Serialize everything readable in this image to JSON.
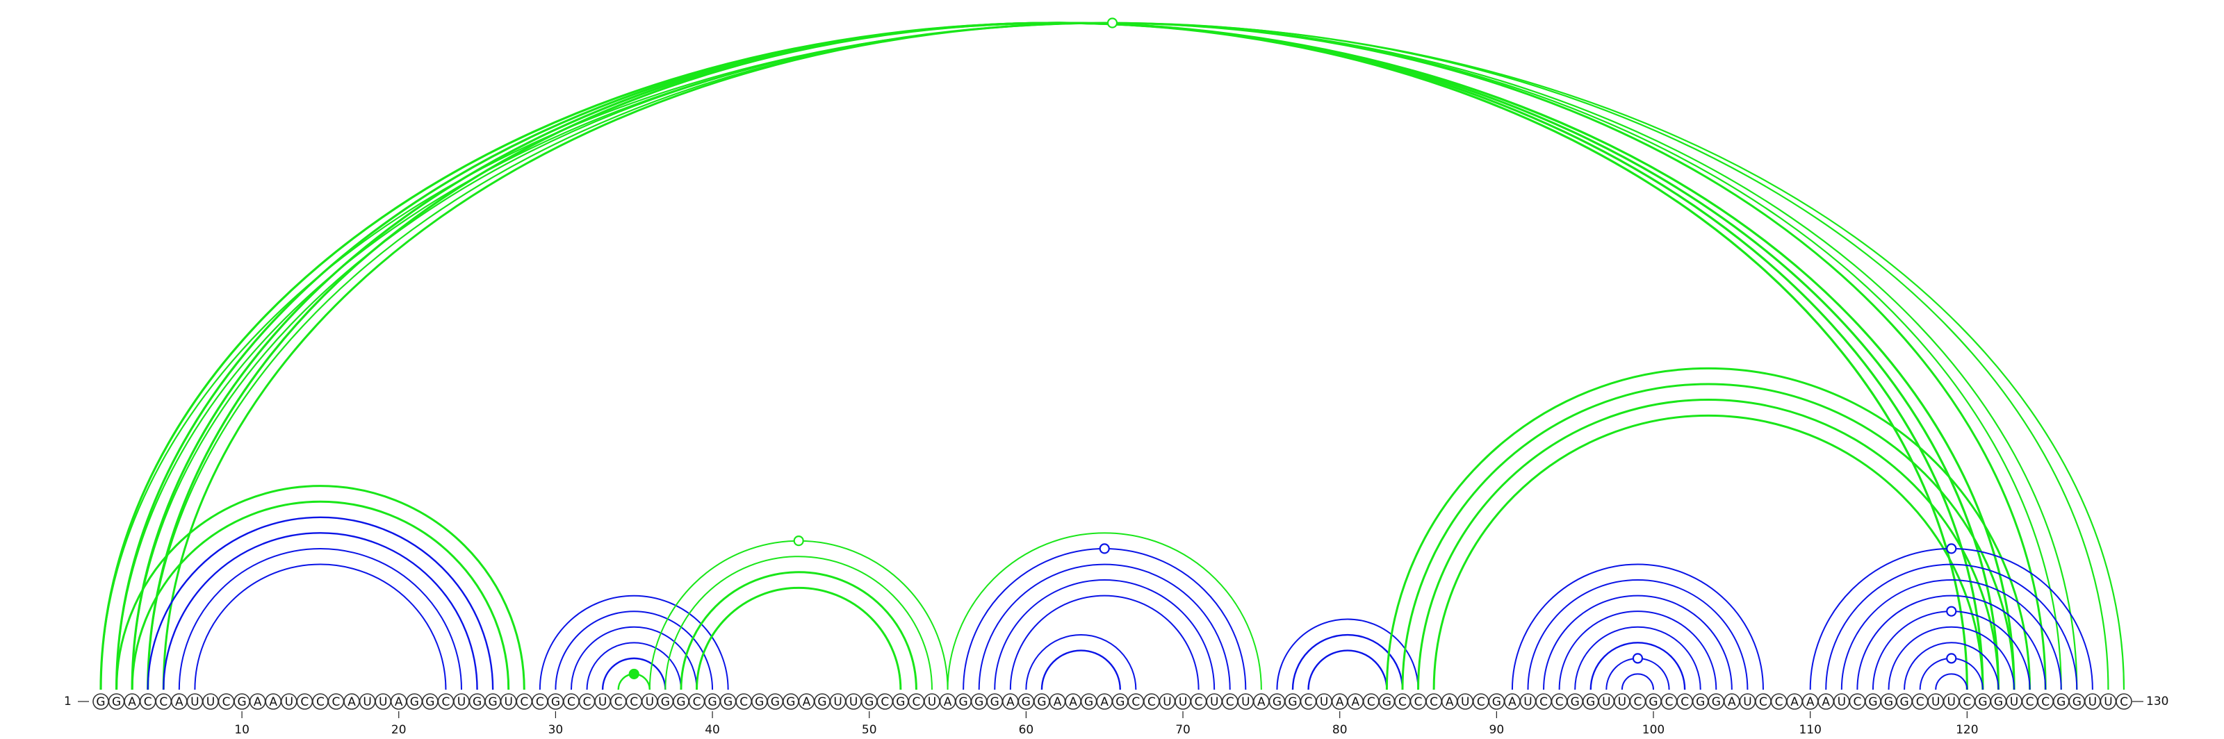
{
  "sequence": "GGACCAUUCGAAUCCCAUUAGGCUGGUCCGCCUCCUGGCGGCGGGAGUUGCGCUAGGGAGGAAGAGCCUUCUCUAGGCUAACGCCCAUCGAUCCGGUUCGCCGGAUCCAAAUCGGGCUUCGGUCCGGUUC",
  "start_label": "1",
  "end_label": "130",
  "tick_labels": [
    "10",
    "20",
    "30",
    "40",
    "50",
    "60",
    "70",
    "80",
    "90",
    "100",
    "110",
    "120"
  ],
  "colors": {
    "blue": "#0a14e6",
    "green": "#19e619"
  },
  "arcs": [
    {
      "i": 1,
      "j": 130,
      "color": "green",
      "width": 2.2
    },
    {
      "i": 2,
      "j": 129,
      "color": "green",
      "width": 2.2
    },
    {
      "i": 1,
      "j": 123,
      "color": "green",
      "width": 3.2
    },
    {
      "i": 2,
      "j": 122,
      "color": "green",
      "width": 3.2
    },
    {
      "i": 3,
      "j": 121,
      "color": "green",
      "width": 3.2
    },
    {
      "i": 4,
      "j": 120,
      "color": "green",
      "width": 3.2
    },
    {
      "i": 3,
      "j": 127,
      "color": "green",
      "width": 2.2
    },
    {
      "i": 4,
      "j": 126,
      "color": "green",
      "width": 2.2
    },
    {
      "i": 5,
      "j": 125,
      "color": "green",
      "width": 3
    },
    {
      "i": 2,
      "j": 28,
      "color": "green",
      "width": 3
    },
    {
      "i": 3,
      "j": 27,
      "color": "green",
      "width": 3
    },
    {
      "i": 4,
      "j": 26,
      "color": "blue",
      "width": 2.4
    },
    {
      "i": 5,
      "j": 25,
      "color": "blue",
      "width": 2.4
    },
    {
      "i": 6,
      "j": 24,
      "color": "blue",
      "width": 2
    },
    {
      "i": 7,
      "j": 23,
      "color": "blue",
      "width": 2
    },
    {
      "i": 29,
      "j": 41,
      "color": "blue",
      "width": 2
    },
    {
      "i": 30,
      "j": 40,
      "color": "blue",
      "width": 2
    },
    {
      "i": 31,
      "j": 39,
      "color": "blue",
      "width": 2
    },
    {
      "i": 32,
      "j": 38,
      "color": "blue",
      "width": 2
    },
    {
      "i": 33,
      "j": 37,
      "color": "blue",
      "width": 2.4
    },
    {
      "i": 34,
      "j": 36,
      "color": "green",
      "width": 2.4
    },
    {
      "i": 36,
      "j": 55,
      "color": "green",
      "width": 2
    },
    {
      "i": 37,
      "j": 54,
      "color": "green",
      "width": 2
    },
    {
      "i": 38,
      "j": 53,
      "color": "green",
      "width": 3
    },
    {
      "i": 39,
      "j": 52,
      "color": "green",
      "width": 3
    },
    {
      "i": 55,
      "j": 75,
      "color": "green",
      "width": 2
    },
    {
      "i": 56,
      "j": 74,
      "color": "blue",
      "width": 2
    },
    {
      "i": 57,
      "j": 73,
      "color": "blue",
      "width": 2
    },
    {
      "i": 58,
      "j": 72,
      "color": "blue",
      "width": 2
    },
    {
      "i": 59,
      "j": 71,
      "color": "blue",
      "width": 2
    },
    {
      "i": 60,
      "j": 67,
      "color": "blue",
      "width": 2
    },
    {
      "i": 61,
      "j": 66,
      "color": "blue",
      "width": 2.4
    },
    {
      "i": 76,
      "j": 85,
      "color": "blue",
      "width": 2
    },
    {
      "i": 77,
      "j": 84,
      "color": "blue",
      "width": 2.4
    },
    {
      "i": 78,
      "j": 83,
      "color": "blue",
      "width": 2.4
    },
    {
      "i": 83,
      "j": 124,
      "color": "green",
      "width": 3
    },
    {
      "i": 84,
      "j": 123,
      "color": "green",
      "width": 3
    },
    {
      "i": 85,
      "j": 122,
      "color": "green",
      "width": 3
    },
    {
      "i": 86,
      "j": 121,
      "color": "green",
      "width": 3
    },
    {
      "i": 91,
      "j": 107,
      "color": "blue",
      "width": 2
    },
    {
      "i": 92,
      "j": 106,
      "color": "blue",
      "width": 2
    },
    {
      "i": 93,
      "j": 105,
      "color": "blue",
      "width": 2
    },
    {
      "i": 94,
      "j": 104,
      "color": "blue",
      "width": 2
    },
    {
      "i": 95,
      "j": 103,
      "color": "blue",
      "width": 2
    },
    {
      "i": 96,
      "j": 102,
      "color": "blue",
      "width": 2.4
    },
    {
      "i": 97,
      "j": 101,
      "color": "blue",
      "width": 2
    },
    {
      "i": 98,
      "j": 100,
      "color": "blue",
      "width": 2
    },
    {
      "i": 110,
      "j": 128,
      "color": "blue",
      "width": 2
    },
    {
      "i": 111,
      "j": 127,
      "color": "blue",
      "width": 2
    },
    {
      "i": 112,
      "j": 126,
      "color": "blue",
      "width": 2
    },
    {
      "i": 113,
      "j": 125,
      "color": "blue",
      "width": 2
    },
    {
      "i": 114,
      "j": 124,
      "color": "blue",
      "width": 2
    },
    {
      "i": 115,
      "j": 123,
      "color": "blue",
      "width": 2
    },
    {
      "i": 116,
      "j": 122,
      "color": "blue",
      "width": 2
    },
    {
      "i": 117,
      "j": 121,
      "color": "blue",
      "width": 2
    },
    {
      "i": 118,
      "j": 120,
      "color": "blue",
      "width": 2
    }
  ],
  "markers": [
    {
      "i": 1,
      "j": 130,
      "color": "green",
      "filled": false
    },
    {
      "i": 36,
      "j": 55,
      "color": "green",
      "filled": false
    },
    {
      "i": 34,
      "j": 36,
      "color": "green",
      "filled": true
    },
    {
      "i": 56,
      "j": 74,
      "color": "blue",
      "filled": false
    },
    {
      "i": 97,
      "j": 101,
      "color": "blue",
      "filled": false
    },
    {
      "i": 110,
      "j": 128,
      "color": "blue",
      "filled": false
    },
    {
      "i": 114,
      "j": 124,
      "color": "blue",
      "filled": false
    },
    {
      "i": 117,
      "j": 121,
      "color": "blue",
      "filled": false
    }
  ]
}
